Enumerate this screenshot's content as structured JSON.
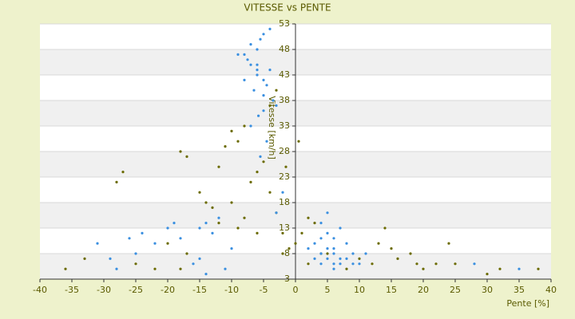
{
  "chart_data": {
    "type": "scatter",
    "title": "VITESSE vs PENTE",
    "x_label": "Pente [%]",
    "y_label": "Vitesse [km/h]",
    "xlim": [
      -40,
      40
    ],
    "ylim": [
      3,
      53
    ],
    "xticks": [
      -40,
      -35,
      -30,
      -25,
      -20,
      -15,
      -10,
      -5,
      0,
      5,
      10,
      15,
      20,
      25,
      30,
      35,
      40
    ],
    "yticks": [
      3,
      8,
      13,
      18,
      23,
      28,
      33,
      38,
      43,
      48,
      53
    ],
    "grid": true,
    "series": [
      {
        "name": null,
        "color": "#3a8fe0",
        "x": [
          -6,
          -5.5,
          -7,
          -4,
          -5,
          -8,
          -6.5,
          -3.5,
          -5,
          -7.5,
          -6,
          -4.5,
          -5.8,
          -9,
          -7,
          -4,
          -6,
          -5,
          -8,
          -3,
          -5,
          -6,
          -7,
          -4.5,
          -5.5,
          -12,
          -14,
          -15,
          -13,
          -18,
          -20,
          -22,
          -25,
          -24,
          -29,
          -31,
          -16,
          -11,
          -10,
          -19,
          -15,
          -26,
          -28,
          -14,
          3,
          4,
          5,
          6,
          7,
          8,
          9,
          10,
          5,
          6,
          7,
          4,
          5,
          6,
          8,
          3,
          4,
          6,
          5,
          7,
          9,
          11,
          4,
          6,
          28,
          35,
          -3,
          -2,
          2
        ],
        "values": [
          48,
          50,
          45,
          44,
          42,
          47,
          40,
          38,
          36,
          46,
          43,
          41,
          35,
          47,
          49,
          52,
          44,
          39,
          42,
          37,
          51,
          45,
          33,
          30,
          27,
          15,
          14,
          13,
          12,
          11,
          13,
          10,
          8,
          12,
          7,
          10,
          6,
          5,
          9,
          14,
          7,
          11,
          5,
          4,
          10,
          8,
          7,
          9,
          6,
          7,
          8,
          6,
          12,
          11,
          13,
          14,
          9,
          5,
          10,
          7,
          6,
          8,
          16,
          7,
          6,
          8,
          11,
          6,
          6,
          5,
          16,
          20,
          9
        ]
      },
      {
        "name": null,
        "color": "#6b6b00",
        "x": [
          -36,
          -33,
          -28,
          -27,
          -25,
          -22,
          -20,
          -18,
          -17,
          -15,
          -13,
          -12,
          -11,
          -10,
          -9,
          -8,
          -7,
          -6,
          -5,
          -4,
          -3,
          -2,
          -1,
          0,
          1,
          2,
          3,
          5,
          8,
          10,
          12,
          14,
          16,
          18,
          20,
          22,
          25,
          30,
          32,
          38,
          -10,
          -8,
          -6,
          -12,
          -4,
          -3,
          -14,
          -17,
          -2,
          0.5,
          -1.5,
          2,
          4,
          13,
          15,
          19,
          24,
          -18,
          -9
        ],
        "values": [
          5,
          7,
          22,
          24,
          6,
          5,
          10,
          28,
          27,
          20,
          17,
          25,
          29,
          18,
          30,
          15,
          22,
          12,
          26,
          20,
          16,
          8,
          9,
          10,
          12,
          6,
          14,
          8,
          5,
          7,
          6,
          13,
          7,
          8,
          5,
          6,
          6,
          4,
          5,
          5,
          32,
          33,
          24,
          14,
          37,
          40,
          18,
          8,
          12,
          30,
          25,
          15,
          8,
          10,
          9,
          6,
          10,
          5,
          13
        ]
      }
    ]
  }
}
